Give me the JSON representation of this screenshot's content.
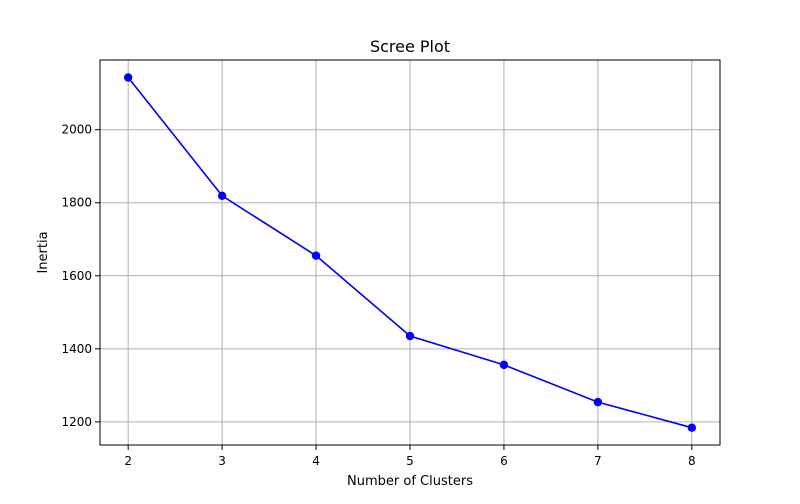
{
  "chart_data": {
    "type": "line",
    "title": "Scree Plot",
    "xlabel": "Number of Clusters",
    "ylabel": "Inertia",
    "x": [
      2,
      3,
      4,
      5,
      6,
      7,
      8
    ],
    "series": [
      {
        "values": [
          2143,
          1819,
          1655,
          1435,
          1356,
          1254,
          1184
        ],
        "color": "#0000ff",
        "marker": "circle"
      }
    ],
    "xticks": [
      2,
      3,
      4,
      5,
      6,
      7,
      8
    ],
    "yticks": [
      1200,
      1400,
      1600,
      1800,
      2000
    ],
    "xlim": [
      1.7,
      8.3
    ],
    "ylim": [
      1136.6,
      2190.9
    ],
    "grid": true,
    "legend": "none"
  }
}
